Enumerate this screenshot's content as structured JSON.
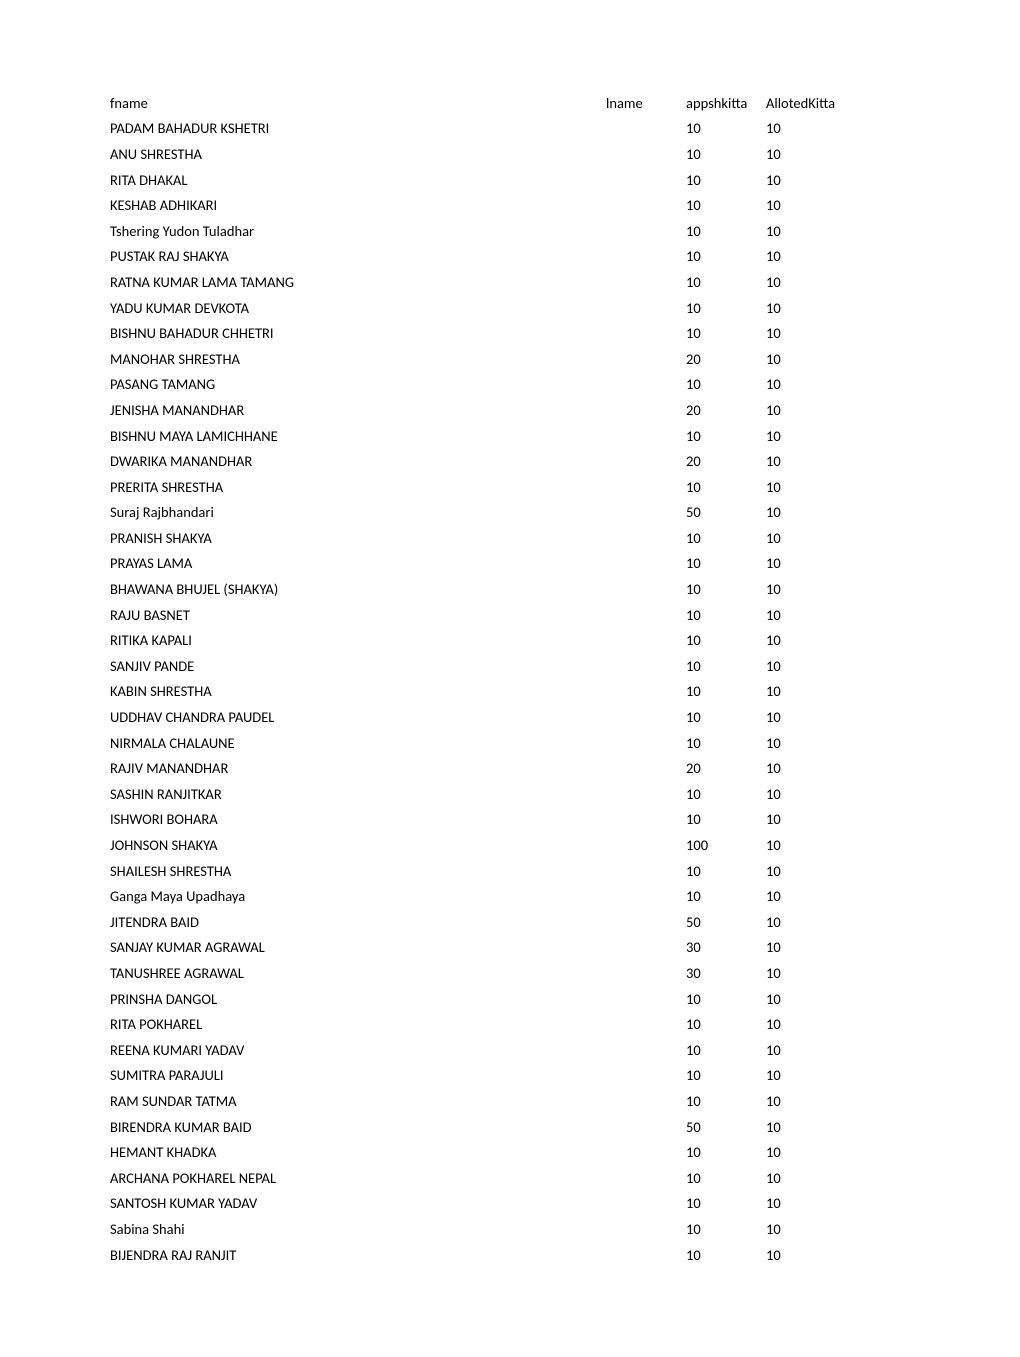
{
  "table": {
    "headers": {
      "fname": "fname",
      "lname": "lname",
      "app": "appshkitta",
      "allot": "AllotedKitta"
    },
    "rows": [
      {
        "fname": "PADAM BAHADUR KSHETRI",
        "app": 10,
        "allot": 10
      },
      {
        "fname": "ANU  SHRESTHA",
        "app": 10,
        "allot": 10
      },
      {
        "fname": "RITA  DHAKAL",
        "app": 10,
        "allot": 10
      },
      {
        "fname": "KESHAB  ADHIKARI",
        "app": 10,
        "allot": 10
      },
      {
        "fname": "Tshering Yudon Tuladhar",
        "app": 10,
        "allot": 10
      },
      {
        "fname": "PUSTAK RAJ SHAKYA",
        "app": 10,
        "allot": 10
      },
      {
        "fname": "RATNA KUMAR  LAMA TAMANG",
        "app": 10,
        "allot": 10
      },
      {
        "fname": "YADU KUMAR DEVKOTA",
        "app": 10,
        "allot": 10
      },
      {
        "fname": "BISHNU BAHADUR CHHETRI",
        "app": 10,
        "allot": 10
      },
      {
        "fname": "MANOHAR  SHRESTHA",
        "app": 20,
        "allot": 10
      },
      {
        "fname": "PASANG  TAMANG",
        "app": 10,
        "allot": 10
      },
      {
        "fname": "JENISHA  MANANDHAR",
        "app": 20,
        "allot": 10
      },
      {
        "fname": "BISHNU MAYA LAMICHHANE",
        "app": 10,
        "allot": 10
      },
      {
        "fname": "DWARIKA  MANANDHAR",
        "app": 20,
        "allot": 10
      },
      {
        "fname": "PRERITA  SHRESTHA",
        "app": 10,
        "allot": 10
      },
      {
        "fname": "Suraj  Rajbhandari",
        "app": 50,
        "allot": 10
      },
      {
        "fname": "PRANISH  SHAKYA",
        "app": 10,
        "allot": 10
      },
      {
        "fname": "PRAYAS  LAMA",
        "app": 10,
        "allot": 10
      },
      {
        "fname": "BHAWANA  BHUJEL (SHAKYA)",
        "app": 10,
        "allot": 10
      },
      {
        "fname": "RAJU  BASNET",
        "app": 10,
        "allot": 10
      },
      {
        "fname": "RITIKA  KAPALI",
        "app": 10,
        "allot": 10
      },
      {
        "fname": "SANJIV  PANDE",
        "app": 10,
        "allot": 10
      },
      {
        "fname": "KABIN  SHRESTHA",
        "app": 10,
        "allot": 10
      },
      {
        "fname": "UDDHAV CHANDRA PAUDEL",
        "app": 10,
        "allot": 10
      },
      {
        "fname": "NIRMALA  CHALAUNE",
        "app": 10,
        "allot": 10
      },
      {
        "fname": "RAJIV  MANANDHAR",
        "app": 20,
        "allot": 10
      },
      {
        "fname": "SASHIN  RANJITKAR",
        "app": 10,
        "allot": 10
      },
      {
        "fname": "ISHWORI  BOHARA",
        "app": 10,
        "allot": 10
      },
      {
        "fname": "JOHNSON  SHAKYA",
        "app": 100,
        "allot": 10
      },
      {
        "fname": "SHAILESH  SHRESTHA",
        "app": 10,
        "allot": 10
      },
      {
        "fname": "Ganga Maya Upadhaya",
        "app": 10,
        "allot": 10
      },
      {
        "fname": "JITENDRA  BAID",
        "app": 50,
        "allot": 10
      },
      {
        "fname": "SANJAY KUMAR AGRAWAL",
        "app": 30,
        "allot": 10
      },
      {
        "fname": "TANUSHREE  AGRAWAL",
        "app": 30,
        "allot": 10
      },
      {
        "fname": "PRINSHA  DANGOL",
        "app": 10,
        "allot": 10
      },
      {
        "fname": "RITA  POKHAREL",
        "app": 10,
        "allot": 10
      },
      {
        "fname": "REENA KUMARI YADAV",
        "app": 10,
        "allot": 10
      },
      {
        "fname": "SUMITRA  PARAJULI",
        "app": 10,
        "allot": 10
      },
      {
        "fname": "RAM SUNDAR TATMA",
        "app": 10,
        "allot": 10
      },
      {
        "fname": "BIRENDRA KUMAR BAID",
        "app": 50,
        "allot": 10
      },
      {
        "fname": "HEMANT  KHADKA",
        "app": 10,
        "allot": 10
      },
      {
        "fname": "ARCHANA POKHAREL NEPAL",
        "app": 10,
        "allot": 10
      },
      {
        "fname": "SANTOSH KUMAR YADAV",
        "app": 10,
        "allot": 10
      },
      {
        "fname": "Sabina  Shahi",
        "app": 10,
        "allot": 10
      },
      {
        "fname": "BIJENDRA RAJ RANJIT",
        "app": 10,
        "allot": 10
      }
    ]
  }
}
